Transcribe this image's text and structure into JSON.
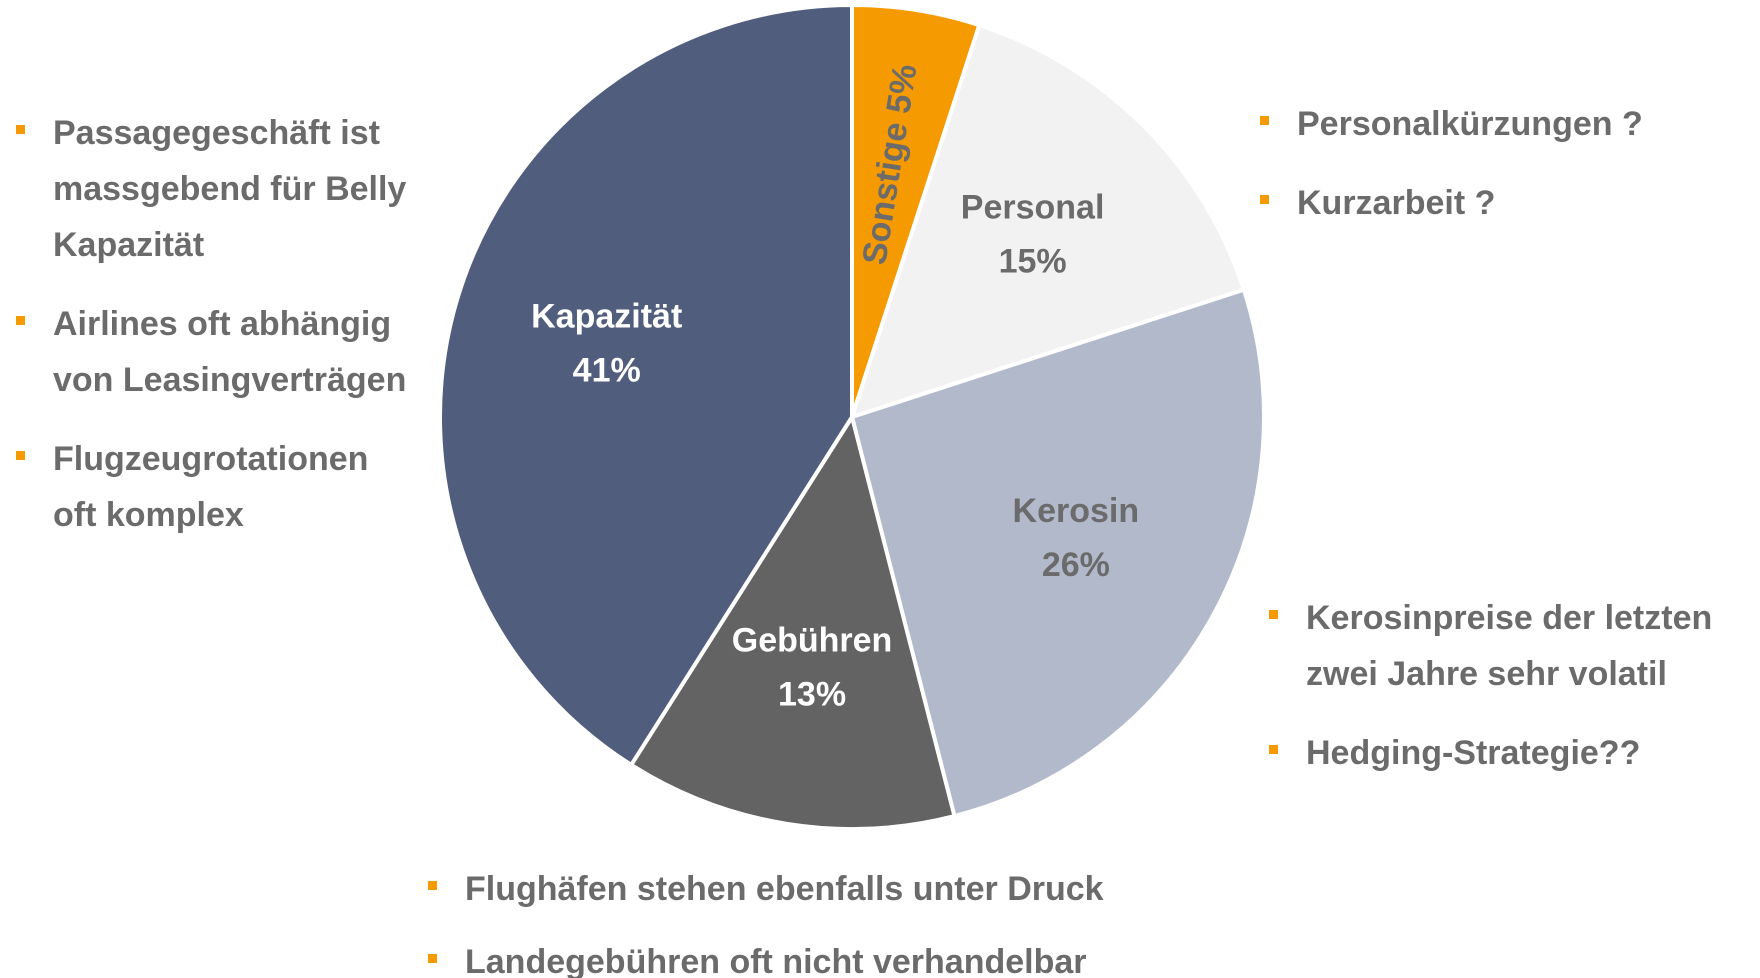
{
  "chart_data": {
    "type": "pie",
    "categories": [
      "Sonstige",
      "Personal",
      "Kerosin",
      "Gebühren",
      "Kapazität"
    ],
    "values": [
      5,
      15,
      26,
      13,
      41
    ],
    "value_labels": [
      "5%",
      "15%",
      "26%",
      "13%",
      "41%"
    ],
    "colors": [
      "#f59a00",
      "#f2f2f2",
      "#b2b9cb",
      "#636363",
      "#505d7c"
    ],
    "label_colors": [
      "#6b6b6b",
      "#6b6b6b",
      "#6b6b6b",
      "#ffffff",
      "#ffffff"
    ],
    "annotations": [
      {
        "items": [
          [
            "Passagegeschäft ist",
            "massgebend für Belly",
            "Kapazität"
          ],
          [
            "Airlines oft abhängig",
            "von Leasingverträgen"
          ],
          [
            "Flugzeugrotationen",
            "oft komplex"
          ]
        ]
      },
      {
        "items": [
          [
            "Personalkürzungen ?"
          ],
          [
            "Kurzarbeit ?"
          ]
        ]
      },
      {
        "items": [
          [
            "Kerosinpreise der letzten",
            "zwei Jahre sehr volatil"
          ],
          [
            "Hedging-Strategie??"
          ]
        ]
      },
      {
        "items": [
          [
            "Flughäfen stehen ebenfalls unter Druck"
          ],
          [
            "Landegebühren oft nicht verhandelbar"
          ]
        ]
      }
    ]
  }
}
